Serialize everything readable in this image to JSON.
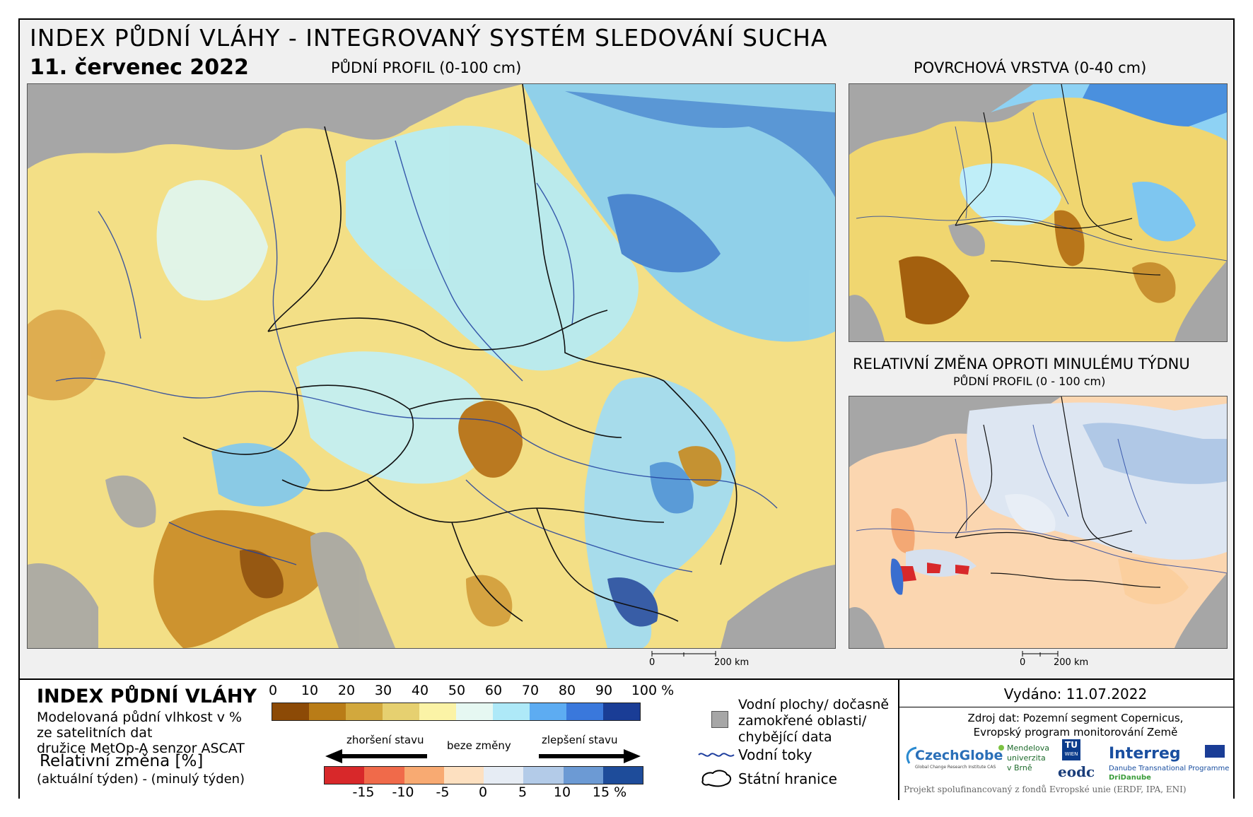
{
  "header": {
    "title": "INDEX PŮDNÍ VLÁHY - INTEGROVANÝ SYSTÉM SLEDOVÁNÍ SUCHA",
    "date": "11. červenec 2022",
    "main_map_title": "PŮDNÍ PROFIL (0-100 cm)",
    "top_right_title": "POVRCHOVÁ VRSTVA (0-40 cm)",
    "bottom_right_title": "RELATIVNÍ ZMĚNA OPROTI MINULÉMU TÝDNU",
    "bottom_right_subtitle": "PŮDNÍ PROFIL (0 - 100 cm)"
  },
  "scale": {
    "main": [
      "0",
      "200 km"
    ],
    "small": [
      "0",
      "200 km"
    ]
  },
  "legend": {
    "title": "INDEX PŮDNÍ VLÁHY",
    "desc1": "Modelovaná půdní vlhkost v %",
    "desc2": "ze satelitních dat",
    "desc3": "družice MetOp-A senzor ASCAT",
    "rel_title": "Relativní změna [%]",
    "rel_desc": "(aktuální týden) - (minulý týden)",
    "index_ticks": [
      "0",
      "10",
      "20",
      "30",
      "40",
      "50",
      "60",
      "70",
      "80",
      "90",
      "100 %"
    ],
    "index_colors": [
      "#8c4a06",
      "#b97c17",
      "#d2a83d",
      "#e6d070",
      "#fbf3a6",
      "#e6f8f2",
      "#aee9f8",
      "#5dacf2",
      "#3a78dc",
      "#1a3d96"
    ],
    "worse": "zhoršení stavu",
    "nochange": "beze změny",
    "better": "zlepšení stavu",
    "change_ticks": [
      "-15",
      "-10",
      "-5",
      "0",
      "5",
      "10",
      "15 %"
    ],
    "change_colors": [
      "#d8282a",
      "#f06a4a",
      "#f8aa72",
      "#fde0c0",
      "#e6ecf4",
      "#b3cbe8",
      "#6c9ad4",
      "#1e4c9a"
    ],
    "water_label1": "Vodní plochy/ dočasně",
    "water_label2": "zamokřené oblasti/",
    "water_label3": "chybějící data",
    "rivers_label": "Vodní toky",
    "borders_label": "Státní hranice"
  },
  "info": {
    "issued": "Vydáno: 11.07.2022",
    "source1": "Zdroj dat: Pozemní segment Copernicus,",
    "source2": "Evropský program monitorování Země",
    "footer": "Projekt spolufinancovaný z fondů Evropské unie (ERDF, IPA, ENI)"
  },
  "logos": {
    "czechglobe": "CzechGlobe",
    "czechglobe_sub": "Global Change Research Institute CAS",
    "mendel1": "Mendelova",
    "mendel2": "univerzita",
    "mendel3": "v Brně",
    "tu": "TU",
    "wien": "WIEN",
    "eodc": "eodc",
    "interreg": "Interreg",
    "danube": "Danube Transnational Programme",
    "dridanube": "DriDanube"
  }
}
